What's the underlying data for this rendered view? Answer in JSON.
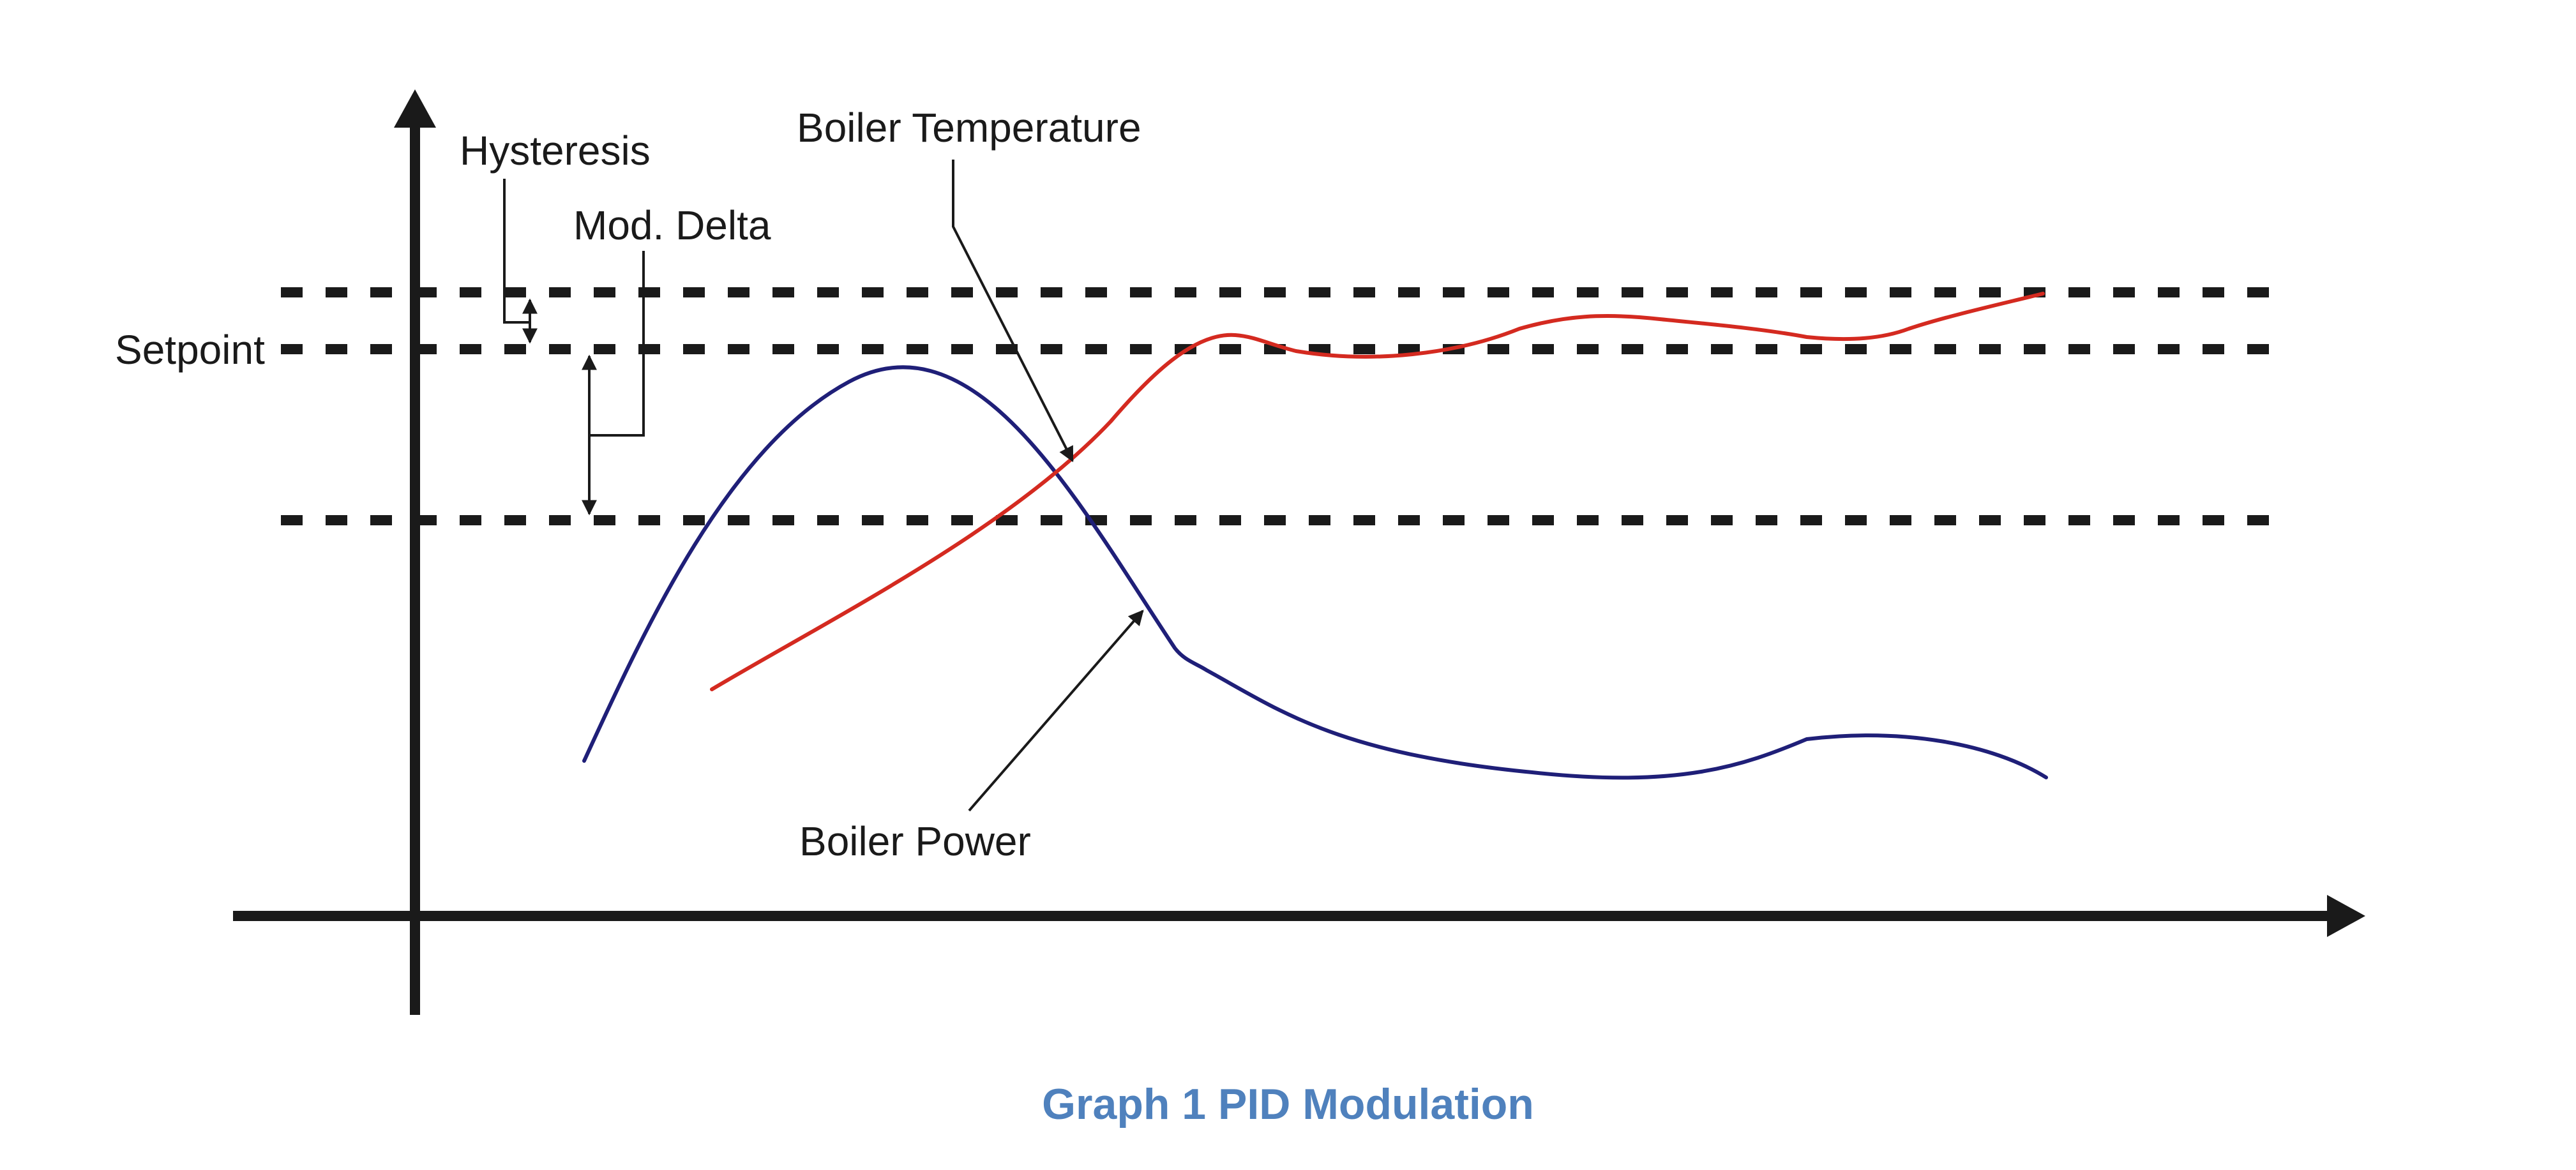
{
  "labels": {
    "hysteresis": "Hysteresis",
    "mod_delta": "Mod. Delta",
    "boiler_temperature": "Boiler Temperature",
    "setpoint": "Setpoint",
    "boiler_power": "Boiler Power"
  },
  "caption": "Graph 1 PID Modulation",
  "colors": {
    "temperature_curve": "#d42a20",
    "power_curve": "#1f1f78",
    "axes": "#1a1a1a",
    "caption": "#4f81bd"
  }
}
